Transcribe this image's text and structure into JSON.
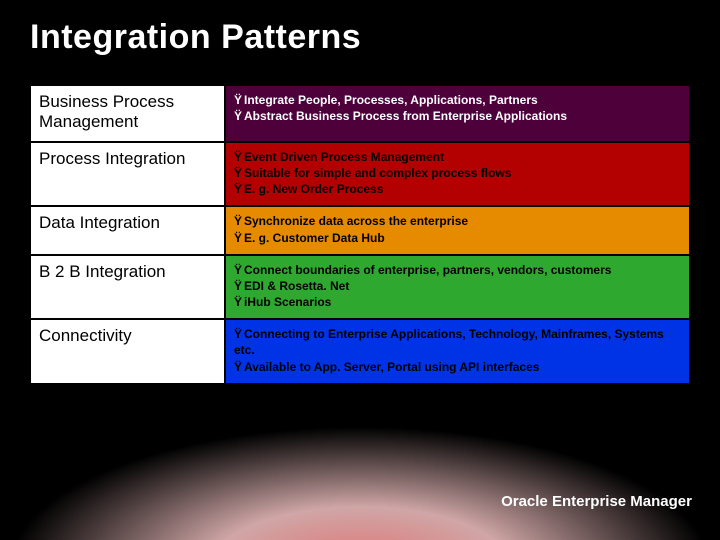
{
  "title": "Integration Patterns",
  "footer": "Oracle Enterprise Manager",
  "bullet_char": "Ÿ",
  "rows": [
    {
      "label": "Business Process Management",
      "bg": "#4d003a",
      "fg": "#ffffff",
      "bullets": [
        "Integrate People, Processes, Applications, Partners",
        "Abstract Business Process from Enterprise Applications"
      ]
    },
    {
      "label": "Process Integration",
      "bg": "#b30000",
      "fg": "#000000",
      "bullets": [
        "Event Driven Process Management",
        "Suitable for simple and complex process flows",
        "E. g. New Order Process"
      ]
    },
    {
      "label": "Data Integration",
      "bg": "#e68a00",
      "fg": "#000000",
      "bullets": [
        "Synchronize data across the enterprise",
        "E. g. Customer Data Hub"
      ]
    },
    {
      "label": "B 2 B Integration",
      "bg": "#2fa82f",
      "fg": "#000000",
      "bullets": [
        "Connect boundaries of enterprise, partners, vendors, customers",
        "EDI & Rosetta. Net",
        "iHub Scenarios"
      ]
    },
    {
      "label": "Connectivity",
      "bg": "#0033e6",
      "fg": "#000000",
      "bullets": [
        "Connecting to Enterprise Applications, Technology, Mainframes, Systems etc.",
        "Available to App. Server, Portal using API interfaces"
      ]
    }
  ]
}
